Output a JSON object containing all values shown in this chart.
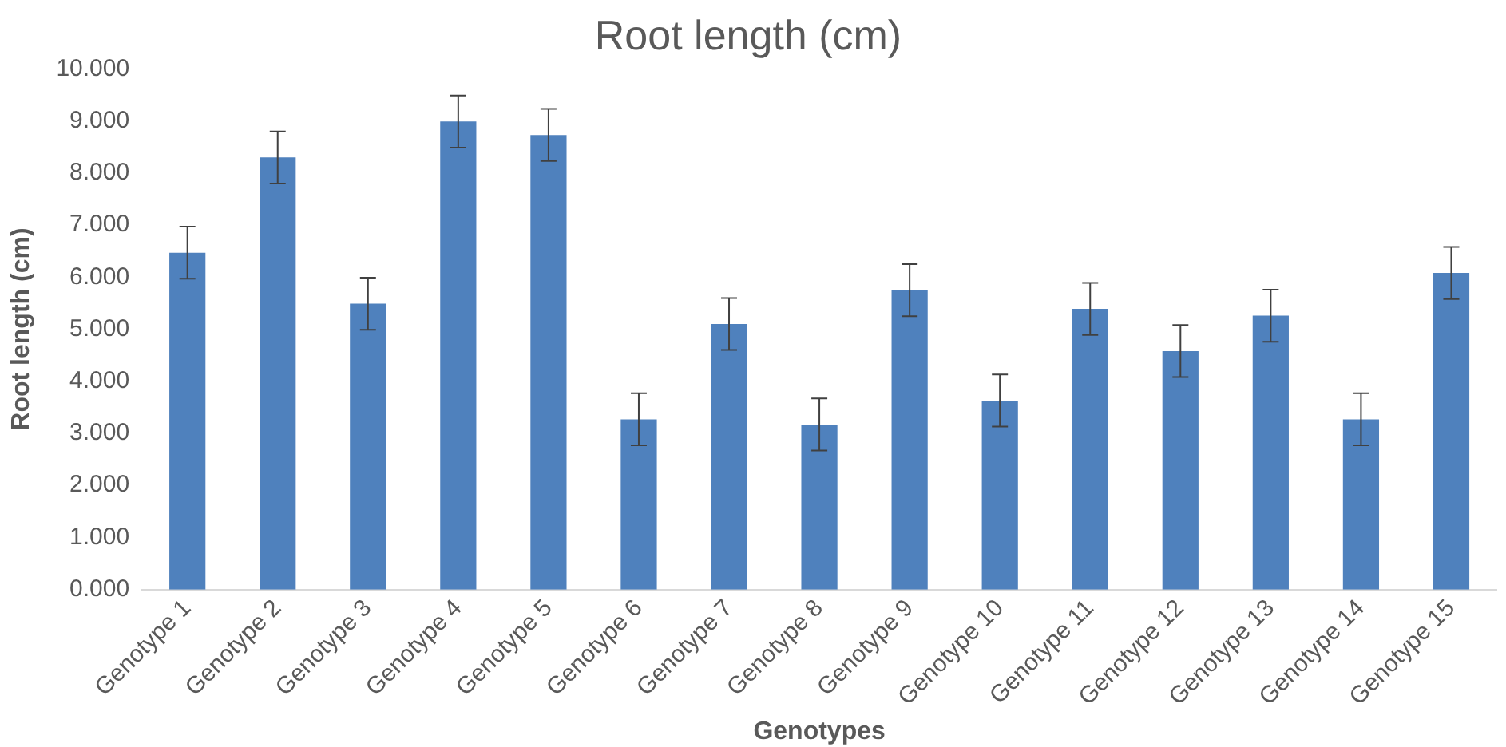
{
  "chart_data": {
    "type": "bar",
    "title": "Root length (cm)",
    "xlabel": "Genotypes",
    "ylabel": "Root length (cm)",
    "categories": [
      "Genotype 1",
      "Genotype 2",
      "Genotype 3",
      "Genotype 4",
      "Genotype 5",
      "Genotype 6",
      "Genotype 7",
      "Genotype 8",
      "Genotype 9",
      "Genotype 10",
      "Genotype 11",
      "Genotype 12",
      "Genotype 13",
      "Genotype 14",
      "Genotype 15"
    ],
    "values": [
      6.47,
      8.3,
      5.49,
      8.99,
      8.73,
      3.27,
      5.1,
      3.17,
      5.75,
      3.63,
      5.39,
      4.58,
      5.26,
      3.27,
      6.08
    ],
    "errors": [
      0.5,
      0.5,
      0.5,
      0.5,
      0.5,
      0.5,
      0.5,
      0.5,
      0.5,
      0.5,
      0.5,
      0.5,
      0.5,
      0.5,
      0.5
    ],
    "color": "#4f81bd",
    "ylim": [
      0,
      10
    ],
    "yticks": [
      {
        "value": 0,
        "label": "0.000"
      },
      {
        "value": 1,
        "label": "1.000"
      },
      {
        "value": 2,
        "label": "2.000"
      },
      {
        "value": 3,
        "label": "3.000"
      },
      {
        "value": 4,
        "label": "4.000"
      },
      {
        "value": 5,
        "label": "5.000"
      },
      {
        "value": 6,
        "label": "6.000"
      },
      {
        "value": 7,
        "label": "7.000"
      },
      {
        "value": 8,
        "label": "8.000"
      },
      {
        "value": 9,
        "label": "9.000"
      },
      {
        "value": 10,
        "label": "10.000"
      }
    ],
    "grid": false,
    "legend": false
  }
}
